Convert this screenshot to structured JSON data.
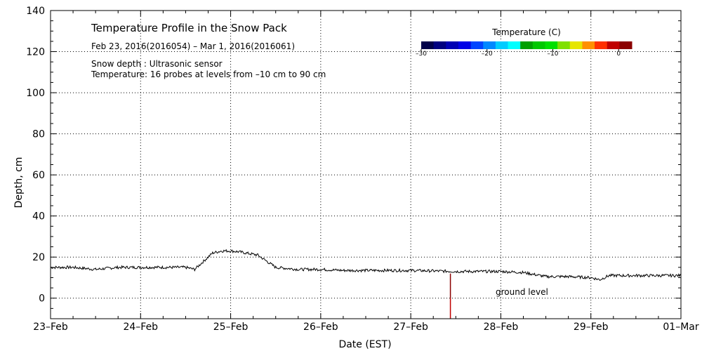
{
  "chart_data": {
    "type": "line",
    "title": "Temperature Profile in the Snow Pack",
    "date_range": "Feb 23, 2016(2016054) – Mar  1, 2016(2016061)",
    "info_line_1": "Snow depth : Ultrasonic sensor",
    "info_line_2": "Temperature: 16 probes at levels from –10 cm to 90 cm",
    "xlabel": "Date (EST)",
    "ylabel": "Depth, cm",
    "xlim_days": [
      0,
      7
    ],
    "ylim": [
      -10,
      140
    ],
    "grid": true,
    "x_ticks": [
      "23–Feb",
      "24–Feb",
      "25–Feb",
      "26–Feb",
      "27–Feb",
      "28–Feb",
      "29–Feb",
      "01–Mar"
    ],
    "y_ticks": [
      "0",
      "20",
      "40",
      "60",
      "80",
      "100",
      "120",
      "140"
    ],
    "annotation": "ground level",
    "colorbar": {
      "title": "Temperature (C)",
      "range": [
        -30,
        2
      ],
      "tick_labels": [
        "–30",
        "–20",
        "–10",
        "0"
      ],
      "tick_values": [
        -30,
        -20,
        -10,
        0
      ],
      "colors": [
        "#00004a",
        "#000080",
        "#0000b4",
        "#0000e6",
        "#0044ff",
        "#0088ff",
        "#00ccff",
        "#00ffff",
        "#00a000",
        "#00c800",
        "#00e000",
        "#80e000",
        "#e6e600",
        "#ff9000",
        "#ff3000",
        "#c00000",
        "#8b0000"
      ]
    },
    "series": [
      {
        "x": [
          0.0,
          0.25,
          0.5,
          0.75,
          1.0,
          1.25,
          1.5,
          1.6,
          1.7,
          1.8,
          1.9,
          2.0,
          2.1,
          2.3,
          2.5,
          2.75,
          3.0,
          3.25,
          3.5,
          4.0,
          4.5,
          5.0,
          5.25,
          5.5,
          5.75,
          6.0,
          6.1,
          6.2,
          6.4,
          6.6,
          6.8,
          7.0
        ],
        "y": [
          15,
          15,
          14,
          15,
          15,
          15,
          15,
          14,
          18,
          22,
          23,
          23,
          22.5,
          21,
          15,
          14,
          14,
          13.5,
          13.5,
          13.5,
          13,
          13,
          12.5,
          10.5,
          10.5,
          10,
          9,
          11,
          11,
          11,
          11,
          11
        ]
      }
    ],
    "temperature_profile": [
      {
        "x": 4.44,
        "y_from": -10,
        "y_to": 0,
        "temperature": 0
      },
      {
        "x": 4.44,
        "y_from": 0,
        "y_to": 12,
        "temperature": 1
      }
    ]
  }
}
